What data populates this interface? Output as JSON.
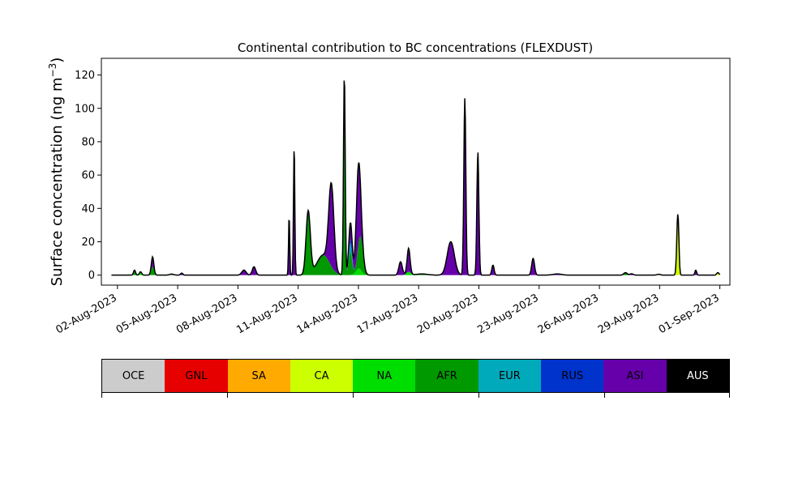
{
  "chart_data": {
    "type": "area",
    "title": "Continental contribution to BC concentrations (FLEXDUST)",
    "ylabel": "Surface concentration (ng m",
    "ylabel_sup": "−3",
    "ylabel_close": ")",
    "xlabel": "",
    "ylim": [
      -6,
      130
    ],
    "xlim": [
      -0.8,
      30.5
    ],
    "y_ticks": [
      0,
      20,
      40,
      60,
      80,
      100,
      120
    ],
    "x_ticks": [
      {
        "x": 0,
        "label": "02-Aug-2023"
      },
      {
        "x": 3,
        "label": "05-Aug-2023"
      },
      {
        "x": 6,
        "label": "08-Aug-2023"
      },
      {
        "x": 9,
        "label": "11-Aug-2023"
      },
      {
        "x": 12,
        "label": "14-Aug-2023"
      },
      {
        "x": 15,
        "label": "17-Aug-2023"
      },
      {
        "x": 18,
        "label": "20-Aug-2023"
      },
      {
        "x": 21,
        "label": "23-Aug-2023"
      },
      {
        "x": 24,
        "label": "26-Aug-2023"
      },
      {
        "x": 27,
        "label": "29-Aug-2023"
      },
      {
        "x": 30,
        "label": "01-Sep-2023"
      }
    ],
    "x_unit": "days since 02-Aug-2023",
    "grid": false,
    "legend_position": "bottom colorbar",
    "series": [
      {
        "name": "CA",
        "color": "#ccff00",
        "peaks": [
          [
            26.95,
            0.5,
            0.12
          ],
          [
            27.9,
            34,
            0.07
          ],
          [
            29.9,
            1.5,
            0.08
          ]
        ]
      },
      {
        "name": "NA",
        "color": "#00dd00",
        "peaks": [
          [
            1.15,
            2,
            0.08
          ],
          [
            12.02,
            4,
            0.2
          ],
          [
            14.5,
            2,
            0.15
          ]
        ]
      },
      {
        "name": "AFR",
        "color": "#009900",
        "peaks": [
          [
            0.85,
            3,
            0.07
          ],
          [
            1.75,
            5,
            0.1
          ],
          [
            2.7,
            0.6,
            0.15
          ],
          [
            9.5,
            38,
            0.15
          ],
          [
            10.25,
            12,
            0.45
          ],
          [
            11.3,
            100,
            0.06
          ],
          [
            11.6,
            14,
            0.12
          ],
          [
            12.1,
            20,
            0.18
          ],
          [
            15.15,
            0.7,
            0.4
          ],
          [
            25.3,
            1.5,
            0.12
          ]
        ]
      },
      {
        "name": "EUR",
        "color": "#00aabb",
        "peaks": [
          [
            11.6,
            5,
            0.1
          ]
        ]
      },
      {
        "name": "RUS",
        "color": "#0033cc",
        "peaks": [
          [
            11.65,
            3,
            0.1
          ],
          [
            27.95,
            6,
            0.05
          ]
        ]
      },
      {
        "name": "ASI",
        "color": "#6600aa",
        "peaks": [
          [
            1.75,
            6,
            0.08
          ],
          [
            3.2,
            1.2,
            0.08
          ],
          [
            6.3,
            3,
            0.15
          ],
          [
            6.8,
            5,
            0.12
          ],
          [
            8.55,
            36,
            0.04
          ],
          [
            8.8,
            78,
            0.045
          ],
          [
            10.65,
            50,
            0.18
          ],
          [
            11.3,
            20,
            0.06
          ],
          [
            11.6,
            10,
            0.12
          ],
          [
            12.0,
            48,
            0.15
          ],
          [
            14.1,
            8,
            0.12
          ],
          [
            14.5,
            14,
            0.1
          ],
          [
            16.6,
            20,
            0.25
          ],
          [
            17.3,
            106,
            0.07
          ],
          [
            17.95,
            74,
            0.07
          ],
          [
            18.7,
            6,
            0.08
          ],
          [
            20.7,
            10,
            0.1
          ],
          [
            21.9,
            0.7,
            0.3
          ],
          [
            25.6,
            0.8,
            0.12
          ],
          [
            28.8,
            3,
            0.06
          ]
        ]
      },
      {
        "name": "AUS",
        "color": "#000000",
        "peaks": []
      }
    ],
    "colorbar": [
      {
        "label": "OCE",
        "color": "#cccccc"
      },
      {
        "label": "GNL",
        "color": "#e60000"
      },
      {
        "label": "SA",
        "color": "#ffaa00"
      },
      {
        "label": "CA",
        "color": "#ccff00"
      },
      {
        "label": "NA",
        "color": "#00dd00"
      },
      {
        "label": "AFR",
        "color": "#009900"
      },
      {
        "label": "EUR",
        "color": "#00aabb"
      },
      {
        "label": "RUS",
        "color": "#0033cc"
      },
      {
        "label": "ASI",
        "color": "#6600aa"
      },
      {
        "label": "AUS",
        "color": "#000000"
      }
    ]
  }
}
